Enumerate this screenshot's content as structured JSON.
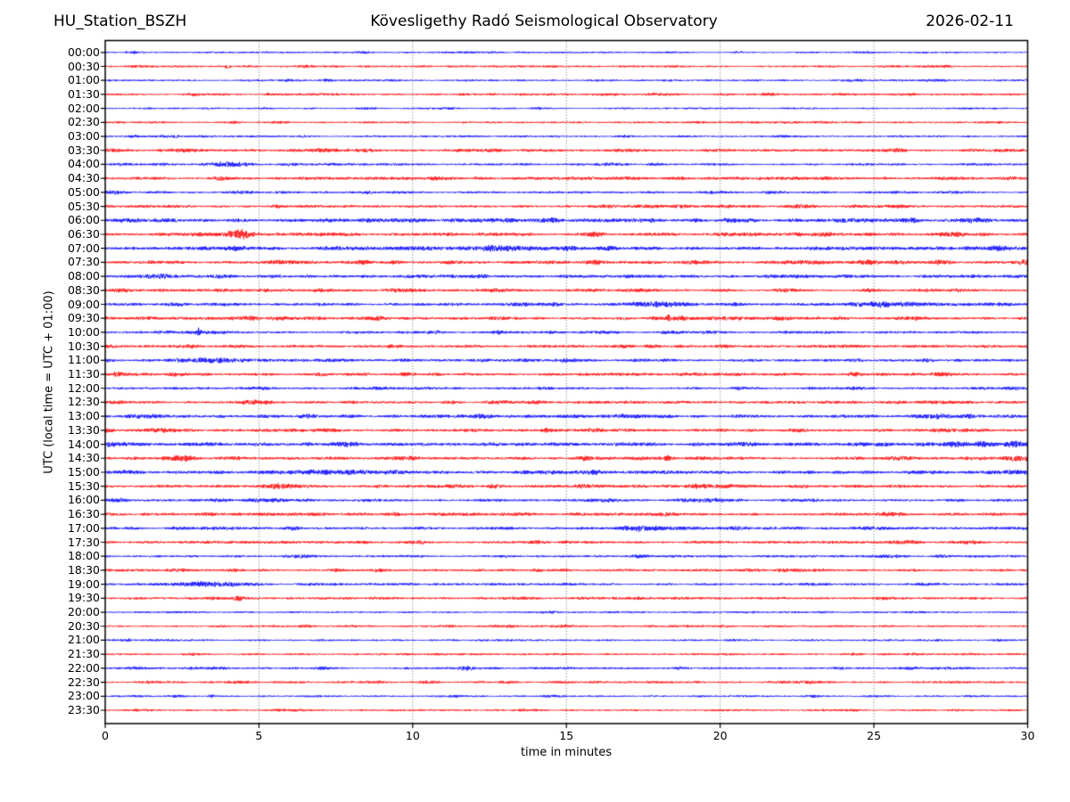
{
  "header": {
    "station": "HU_Station_BSZH",
    "observatory": "Kövesligethy Radó Seismological Observatory",
    "date": "2026-02-11"
  },
  "axes": {
    "xlabel": "time in minutes",
    "ylabel": "UTC (local time = UTC + 01:00)",
    "x_ticks": [
      "0",
      "5",
      "10",
      "15",
      "20",
      "25",
      "30"
    ],
    "x_range": [
      0,
      30
    ],
    "grid": "dotted vertical gridlines every 5 minutes"
  },
  "chart_data": {
    "type": "line",
    "variant": "helicorder-day-plot",
    "title": "Kövesligethy Radó Seismological Observatory",
    "station": "HU_Station_BSZH",
    "date": "2026-02-11",
    "xlabel": "time in minutes",
    "ylabel": "UTC (local time = UTC + 01:00)",
    "xlim": [
      0,
      30
    ],
    "minutes_per_row": 30,
    "row_interval": "00:30",
    "legend": "none",
    "grid_minutes": [
      5,
      10,
      15,
      20,
      25
    ],
    "trace_colors": {
      "even_rows": "#0000ff",
      "odd_rows": "#ff0000"
    },
    "frame_color": "#000000",
    "events_format": "[start_minute, duration_sigma_minutes, amplitude_px]",
    "rows": [
      {
        "time": "00:00",
        "color": "#0000ff",
        "base_amp": 1.0,
        "events": [
          [
            20.6,
            0.15,
            0.8
          ]
        ]
      },
      {
        "time": "00:30",
        "color": "#ff0000",
        "base_amp": 1.1,
        "events": [
          [
            4.0,
            0.08,
            2.2
          ],
          [
            27.4,
            0.1,
            1.0
          ]
        ]
      },
      {
        "time": "01:00",
        "color": "#0000ff",
        "base_amp": 1.0,
        "events": [
          [
            7.2,
            0.12,
            1.6
          ],
          [
            21.1,
            0.15,
            1.0
          ]
        ]
      },
      {
        "time": "01:30",
        "color": "#ff0000",
        "base_amp": 1.1,
        "events": [
          [
            5.3,
            0.06,
            2.2
          ],
          [
            24.2,
            0.2,
            0.8
          ]
        ]
      },
      {
        "time": "02:00",
        "color": "#0000ff",
        "base_amp": 0.9,
        "events": []
      },
      {
        "time": "02:30",
        "color": "#ff0000",
        "base_amp": 1.0,
        "events": [
          [
            23.1,
            0.25,
            0.9
          ]
        ]
      },
      {
        "time": "03:00",
        "color": "#0000ff",
        "base_amp": 1.0,
        "events": [
          [
            14.5,
            0.3,
            0.6
          ]
        ]
      },
      {
        "time": "03:30",
        "color": "#ff0000",
        "base_amp": 1.5,
        "events": [
          [
            0.3,
            0.3,
            1.5
          ]
        ]
      },
      {
        "time": "04:00",
        "color": "#0000ff",
        "base_amp": 1.2,
        "events": [
          [
            4.0,
            0.45,
            3.2
          ],
          [
            18.0,
            0.2,
            0.9
          ]
        ]
      },
      {
        "time": "04:30",
        "color": "#ff0000",
        "base_amp": 1.5,
        "events": [
          [
            16.8,
            0.4,
            1.2
          ]
        ]
      },
      {
        "time": "05:00",
        "color": "#0000ff",
        "base_amp": 1.2,
        "events": [
          [
            0.4,
            0.3,
            2.0
          ],
          [
            8.5,
            0.15,
            1.8
          ]
        ]
      },
      {
        "time": "05:30",
        "color": "#ff0000",
        "base_amp": 1.4,
        "events": [
          [
            17.0,
            1.5,
            0.5
          ]
        ]
      },
      {
        "time": "06:00",
        "color": "#0000ff",
        "base_amp": 2.0,
        "events": [
          [
            20.3,
            0.3,
            1.0
          ],
          [
            28.6,
            0.3,
            1.0
          ]
        ]
      },
      {
        "time": "06:30",
        "color": "#ff0000",
        "base_amp": 1.7,
        "events": [
          [
            4.35,
            0.28,
            4.5
          ],
          [
            22.5,
            1.2,
            1.0
          ],
          [
            27.5,
            0.4,
            1.0
          ]
        ]
      },
      {
        "time": "07:00",
        "color": "#0000ff",
        "base_amp": 1.8,
        "events": [
          [
            12.6,
            0.3,
            1.2
          ],
          [
            14.2,
            1.2,
            1.5
          ],
          [
            21.0,
            0.3,
            0.8
          ],
          [
            28.8,
            1.0,
            1.2
          ]
        ]
      },
      {
        "time": "07:30",
        "color": "#ff0000",
        "base_amp": 1.6,
        "events": [
          [
            9.3,
            0.2,
            0.8
          ],
          [
            27.2,
            0.25,
            1.8
          ],
          [
            29.8,
            0.2,
            1.5
          ]
        ]
      },
      {
        "time": "08:00",
        "color": "#0000ff",
        "base_amp": 1.6,
        "events": [
          [
            1.8,
            0.3,
            1.6
          ]
        ]
      },
      {
        "time": "08:30",
        "color": "#ff0000",
        "base_amp": 1.4,
        "events": [
          [
            5.2,
            0.15,
            1.0
          ],
          [
            27.7,
            0.2,
            1.2
          ]
        ]
      },
      {
        "time": "09:00",
        "color": "#0000ff",
        "base_amp": 1.4,
        "events": [
          [
            17.8,
            0.8,
            2.0
          ],
          [
            20.5,
            0.2,
            1.2
          ],
          [
            25.5,
            1.4,
            1.6
          ]
        ]
      },
      {
        "time": "09:30",
        "color": "#ff0000",
        "base_amp": 1.6,
        "events": [
          [
            4.7,
            0.2,
            2.0
          ],
          [
            6.0,
            0.15,
            1.2
          ],
          [
            18.3,
            0.07,
            3.5
          ],
          [
            21.5,
            1.2,
            0.8
          ]
        ]
      },
      {
        "time": "10:00",
        "color": "#0000ff",
        "base_amp": 1.3,
        "events": [
          [
            3.05,
            0.05,
            8.0
          ],
          [
            3.0,
            0.8,
            1.4
          ],
          [
            12.8,
            0.2,
            1.5
          ]
        ]
      },
      {
        "time": "10:30",
        "color": "#ff0000",
        "base_amp": 1.5,
        "events": []
      },
      {
        "time": "11:00",
        "color": "#0000ff",
        "base_amp": 1.3,
        "events": [
          [
            3.4,
            0.9,
            2.2
          ],
          [
            6.5,
            0.4,
            0.9
          ],
          [
            9.6,
            0.15,
            1.0
          ]
        ]
      },
      {
        "time": "11:30",
        "color": "#ff0000",
        "base_amp": 1.5,
        "events": [
          [
            0.3,
            0.25,
            1.8
          ]
        ]
      },
      {
        "time": "12:00",
        "color": "#0000ff",
        "base_amp": 1.2,
        "events": [
          [
            14.3,
            0.25,
            1.3
          ],
          [
            20.6,
            0.2,
            0.9
          ]
        ]
      },
      {
        "time": "12:30",
        "color": "#ff0000",
        "base_amp": 1.4,
        "events": [
          [
            4.7,
            0.18,
            2.2
          ],
          [
            27.0,
            0.5,
            0.8
          ]
        ]
      },
      {
        "time": "13:00",
        "color": "#0000ff",
        "base_amp": 1.6,
        "events": [
          [
            1.5,
            1.2,
            0.9
          ],
          [
            12.3,
            0.25,
            2.0
          ],
          [
            27.0,
            0.4,
            1.4
          ]
        ]
      },
      {
        "time": "13:30",
        "color": "#ff0000",
        "base_amp": 1.5,
        "events": [
          [
            2.0,
            0.5,
            0.8
          ],
          [
            6.3,
            0.3,
            0.8
          ],
          [
            14.3,
            0.1,
            2.0
          ],
          [
            28.0,
            0.3,
            0.8
          ]
        ]
      },
      {
        "time": "14:00",
        "color": "#0000ff",
        "base_amp": 1.9,
        "events": [
          [
            3.5,
            0.3,
            1.2
          ],
          [
            10.0,
            0.4,
            0.8
          ],
          [
            28.5,
            1.0,
            0.9
          ]
        ]
      },
      {
        "time": "14:30",
        "color": "#ff0000",
        "base_amp": 1.6,
        "events": [
          [
            2.6,
            0.25,
            2.0
          ],
          [
            15.6,
            0.1,
            1.5
          ],
          [
            18.3,
            0.07,
            3.0
          ],
          [
            29.5,
            0.3,
            1.5
          ]
        ]
      },
      {
        "time": "15:00",
        "color": "#0000ff",
        "base_amp": 1.8,
        "events": [
          [
            6.8,
            0.6,
            1.5
          ],
          [
            8.2,
            0.3,
            1.2
          ],
          [
            14.2,
            0.3,
            1.0
          ],
          [
            29.6,
            0.25,
            2.2
          ]
        ]
      },
      {
        "time": "15:30",
        "color": "#ff0000",
        "base_amp": 1.5,
        "events": [
          [
            6.0,
            0.4,
            1.2
          ],
          [
            19.5,
            0.3,
            1.5
          ]
        ]
      },
      {
        "time": "16:00",
        "color": "#0000ff",
        "base_amp": 1.4,
        "events": [
          [
            0.3,
            0.25,
            2.2
          ],
          [
            19.8,
            0.25,
            1.5
          ]
        ]
      },
      {
        "time": "16:30",
        "color": "#ff0000",
        "base_amp": 1.5,
        "events": [
          [
            15.3,
            0.2,
            1.3
          ],
          [
            25.4,
            0.15,
            1.5
          ]
        ]
      },
      {
        "time": "17:00",
        "color": "#0000ff",
        "base_amp": 1.4,
        "events": [
          [
            17.4,
            0.35,
            3.0
          ],
          [
            18.5,
            0.8,
            1.0
          ]
        ]
      },
      {
        "time": "17:30",
        "color": "#ff0000",
        "base_amp": 1.4,
        "events": [
          [
            8.5,
            0.2,
            0.8
          ],
          [
            24.0,
            1.5,
            0.5
          ]
        ]
      },
      {
        "time": "18:00",
        "color": "#0000ff",
        "base_amp": 1.2,
        "events": []
      },
      {
        "time": "18:30",
        "color": "#ff0000",
        "base_amp": 1.3,
        "events": [
          [
            23.2,
            0.3,
            0.8
          ]
        ]
      },
      {
        "time": "19:00",
        "color": "#0000ff",
        "base_amp": 1.2,
        "events": [
          [
            3.4,
            0.8,
            2.8
          ],
          [
            15.0,
            0.2,
            0.9
          ],
          [
            23.0,
            0.3,
            1.0
          ]
        ]
      },
      {
        "time": "19:30",
        "color": "#ff0000",
        "base_amp": 1.3,
        "events": [
          [
            3.6,
            0.2,
            1.0
          ],
          [
            4.3,
            0.12,
            3.0
          ]
        ]
      },
      {
        "time": "20:00",
        "color": "#0000ff",
        "base_amp": 1.0,
        "events": []
      },
      {
        "time": "20:30",
        "color": "#ff0000",
        "base_amp": 1.1,
        "events": []
      },
      {
        "time": "21:00",
        "color": "#0000ff",
        "base_amp": 1.0,
        "events": [
          [
            0.75,
            0.06,
            2.2
          ],
          [
            20.4,
            0.15,
            0.8
          ]
        ]
      },
      {
        "time": "21:30",
        "color": "#ff0000",
        "base_amp": 1.0,
        "events": []
      },
      {
        "time": "22:00",
        "color": "#0000ff",
        "base_amp": 1.1,
        "events": [
          [
            11.8,
            0.25,
            2.5
          ]
        ]
      },
      {
        "time": "22:30",
        "color": "#ff0000",
        "base_amp": 1.1,
        "events": [
          [
            10.4,
            0.25,
            1.5
          ]
        ]
      },
      {
        "time": "23:00",
        "color": "#0000ff",
        "base_amp": 1.0,
        "events": [
          [
            3.45,
            0.06,
            2.5
          ]
        ]
      },
      {
        "time": "23:30",
        "color": "#ff0000",
        "base_amp": 1.0,
        "events": []
      }
    ]
  }
}
